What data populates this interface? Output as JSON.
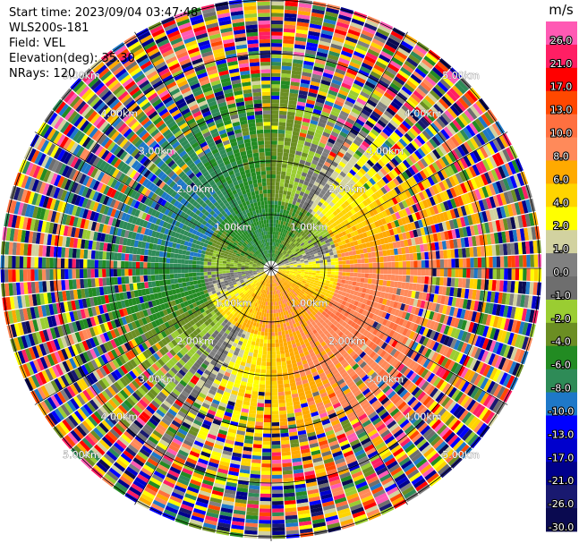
{
  "header": {
    "start_time": "Start time: 2023/09/04 03:47:48",
    "instrument": "WLS200s-181",
    "field": "Field: VEL",
    "elevation": "Elevation(deg): 35.30",
    "nrays": "NRays: 120"
  },
  "chart_data": {
    "type": "heatmap",
    "projection": "polar (PPI)",
    "field": "VEL",
    "units": "m/s",
    "n_rays": 120,
    "range_rings_km": [
      1,
      2,
      3,
      4,
      5
    ],
    "range_ring_labels": [
      "1.00km",
      "2.00km",
      "3.00km",
      "4.00km",
      "5.00km"
    ],
    "colorbar": {
      "title": "m/s",
      "tick_labels": [
        "26.0",
        "21.0",
        "17.0",
        "13.0",
        "10.0",
        "8.0",
        "6.0",
        "4.0",
        "2.0",
        "1.0",
        "0.0",
        "-1.0",
        "-2.0",
        "-4.0",
        "-6.0",
        "-8.0",
        "-10.0",
        "-13.0",
        "-17.0",
        "-21.0",
        "-26.0",
        "-30.0"
      ],
      "colors": [
        "#ff5ab4",
        "#ff1e64",
        "#ff0000",
        "#ff4800",
        "#ff7040",
        "#ff8a5a",
        "#ffaa00",
        "#ffd400",
        "#ffff00",
        "#d2d2a0",
        "#808080",
        "#6e6e6e",
        "#9acd32",
        "#6b8e23",
        "#228b22",
        "#2e8b57",
        "#1e78c8",
        "#0000ff",
        "#0000cd",
        "#00008b",
        "#191970",
        "#0a0a50"
      ]
    },
    "pattern_summary": {
      "near_field_north": "negative (-2 to -6 m/s, greens)",
      "near_field_south": "positive (2 to 8 m/s, yellows/oranges)",
      "east_sector": "positive (4 to 10 m/s, orange/yellow)",
      "west_sector": "negative (-6 to -10 m/s, blues/greens)",
      "outer_ring": "noisy / speckled"
    }
  }
}
